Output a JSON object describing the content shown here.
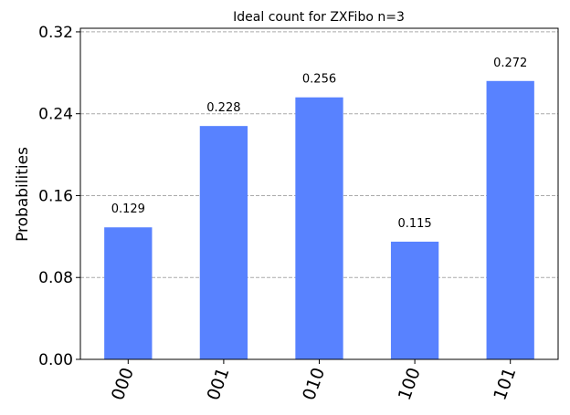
{
  "chart_data": {
    "type": "bar",
    "title": "Ideal count for ZXFibo n=3",
    "xlabel": "",
    "ylabel": "Probabilities",
    "categories": [
      "000",
      "001",
      "010",
      "100",
      "101"
    ],
    "values": [
      0.129,
      0.228,
      0.256,
      0.115,
      0.272
    ],
    "value_labels": [
      "0.129",
      "0.228",
      "0.256",
      "0.115",
      "0.272"
    ],
    "yticks": [
      0.0,
      0.08,
      0.16,
      0.24,
      0.32
    ],
    "ytick_labels": [
      "0.00",
      "0.08",
      "0.16",
      "0.24",
      "0.32"
    ],
    "ylim": [
      0,
      0.3235
    ],
    "grid": "horizontal dashed",
    "bar_color": "#5882ff",
    "grid_color": "#aaaaaa"
  }
}
